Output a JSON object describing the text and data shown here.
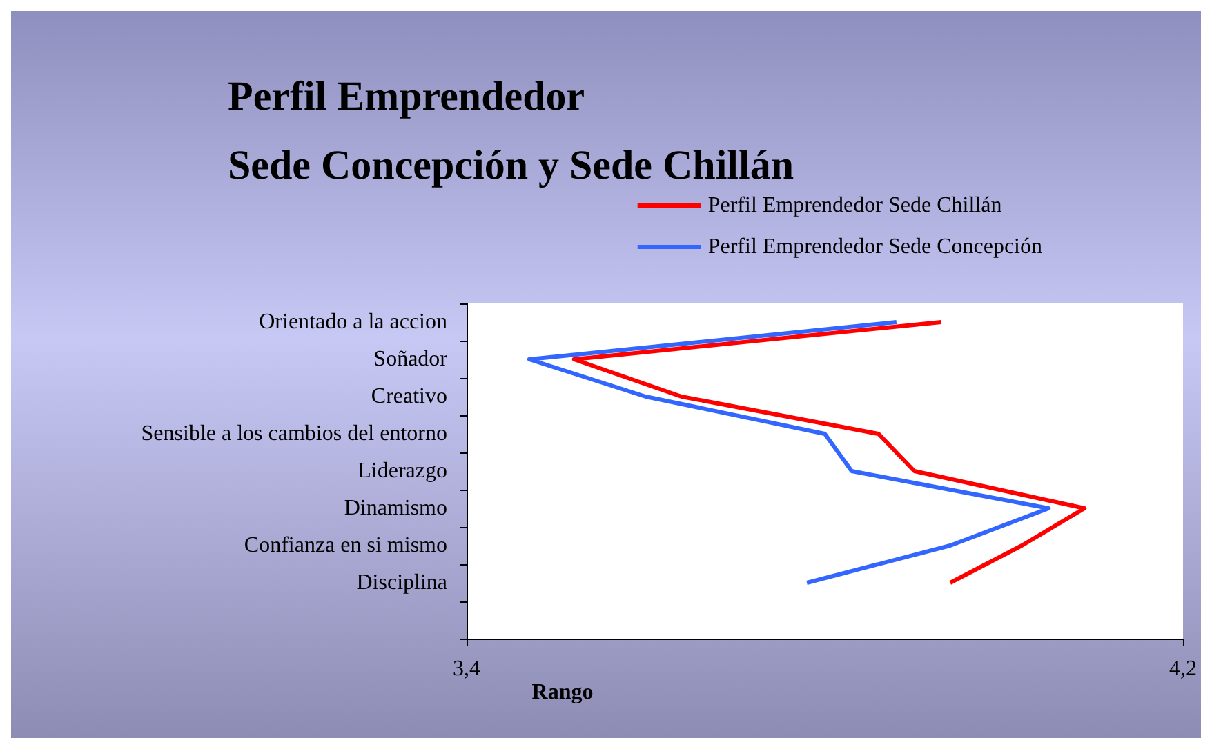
{
  "chart_data": {
    "type": "line",
    "orientation": "horizontal",
    "title": "Perfil Emprendedor\nSede Concepción y Sede Chillán",
    "xlabel": "Rango",
    "categories": [
      "Orientado a la accion",
      "Soñador",
      "Creativo",
      "Sensible a los cambios del entorno",
      "Liderazgo",
      "Dinamismo",
      "Confianza en si mismo",
      "Disciplina",
      null
    ],
    "series": [
      {
        "name": "Perfil Emprendedor Sede Chillán",
        "color": "#ff0000",
        "values": [
          3.93,
          3.52,
          3.64,
          3.86,
          3.9,
          4.09,
          4.02,
          3.94,
          null
        ]
      },
      {
        "name": "Perfil Emprendedor Sede Concepción",
        "color": "#3366ff",
        "values": [
          3.88,
          3.47,
          3.6,
          3.8,
          3.83,
          4.05,
          3.94,
          3.78,
          null
        ]
      }
    ],
    "xlim": [
      3.4,
      4.2
    ],
    "xticks": [
      {
        "value": 3.4,
        "label": "3,4"
      },
      {
        "value": 4.2,
        "label": "4,2"
      }
    ],
    "grid": false,
    "legend": "top right",
    "marker": "none",
    "line_style": "solid"
  }
}
